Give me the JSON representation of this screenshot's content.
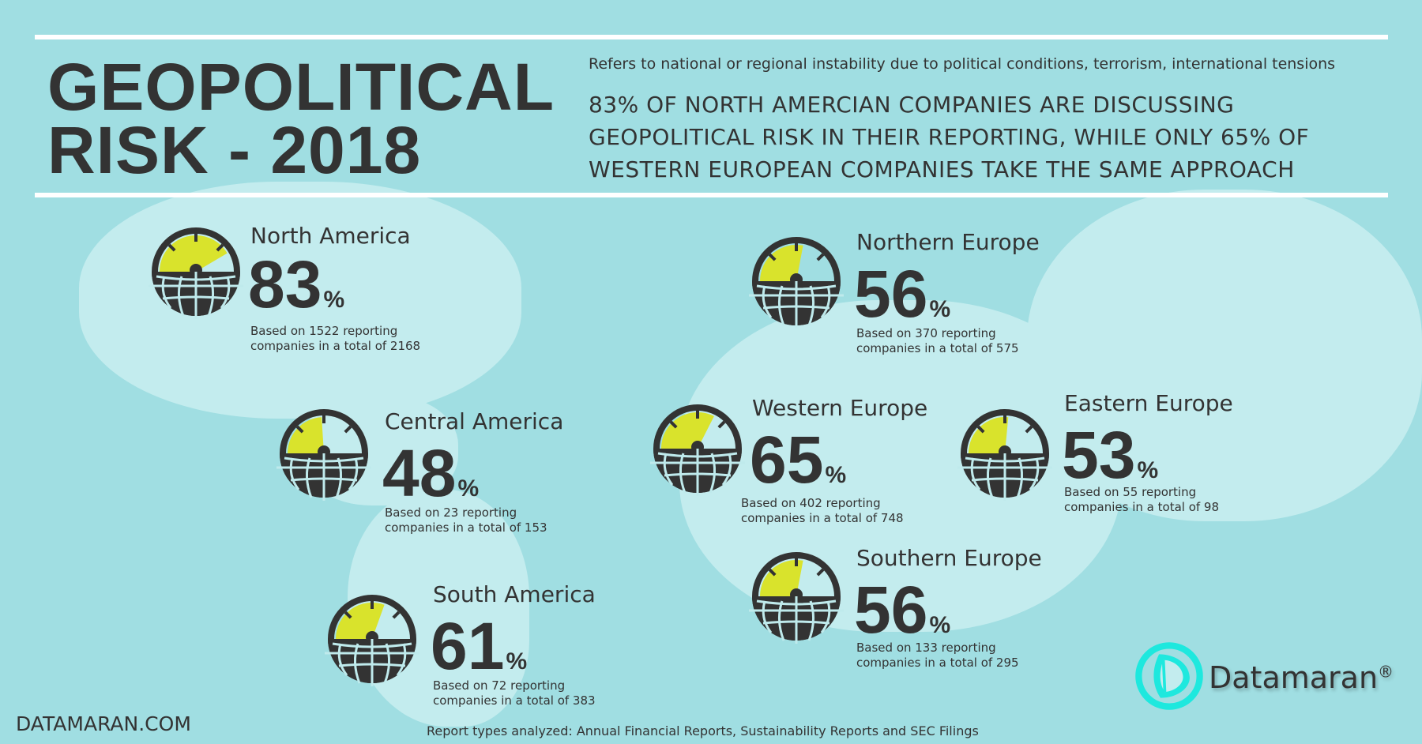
{
  "header": {
    "title_line1": "GEOPOLITICAL",
    "title_line2": "RISK - 2018",
    "subtitle": "Refers to national or regional instability due to political conditions, terrorism, international tensions",
    "quote_lines": [
      "83% OF NORTH AMERCIAN COMPANIES ARE DISCUSSING",
      "GEOPOLITICAL RISK IN THEIR REPORTING, WHILE ONLY 65% OF",
      "WESTERN EUROPEAN COMPANIES TAKE THE SAME APPROACH"
    ]
  },
  "colors": {
    "background": "#a0dee2",
    "land": "#c3ecee",
    "gauge_dark": "#333333",
    "gauge_fill": "#d9e32c",
    "logo": "#1ee8de"
  },
  "regions": [
    {
      "name": "North America",
      "value": "83",
      "percent": 83,
      "unit": "%",
      "note1": "Based on 1522 reporting",
      "note2": "companies in a total of 2168"
    },
    {
      "name": "Northern Europe",
      "value": "56",
      "percent": 56,
      "unit": "%",
      "note1": "Based on 370 reporting",
      "note2": "companies in a total of 575"
    },
    {
      "name": "Central America",
      "value": "48",
      "percent": 48,
      "unit": "%",
      "note1": "Based on 23 reporting",
      "note2": "companies in a total of 153"
    },
    {
      "name": "Western Europe",
      "value": "65",
      "percent": 65,
      "unit": "%",
      "note1": "Based on 402 reporting",
      "note2": "companies in a total of 748"
    },
    {
      "name": "Eastern Europe",
      "value": "53",
      "percent": 53,
      "unit": "%",
      "note1": "Based on 55 reporting",
      "note2": "companies in a total of 98"
    },
    {
      "name": "South America",
      "value": "61",
      "percent": 61,
      "unit": "%",
      "note1": "Based on 72 reporting",
      "note2": "companies in a total of 383"
    },
    {
      "name": "Southern Europe",
      "value": "56",
      "percent": 56,
      "unit": "%",
      "note1": "Based on 133 reporting",
      "note2": "companies in a total of 295"
    }
  ],
  "footer": {
    "site": "DATAMARAN.COM",
    "report_types": "Report types analyzed: Annual Financial Reports, Sustainability Reports and SEC Filings"
  },
  "logo": {
    "name": "Datamaran",
    "reg": "®",
    "icon": "sailboat-circle-logo"
  }
}
